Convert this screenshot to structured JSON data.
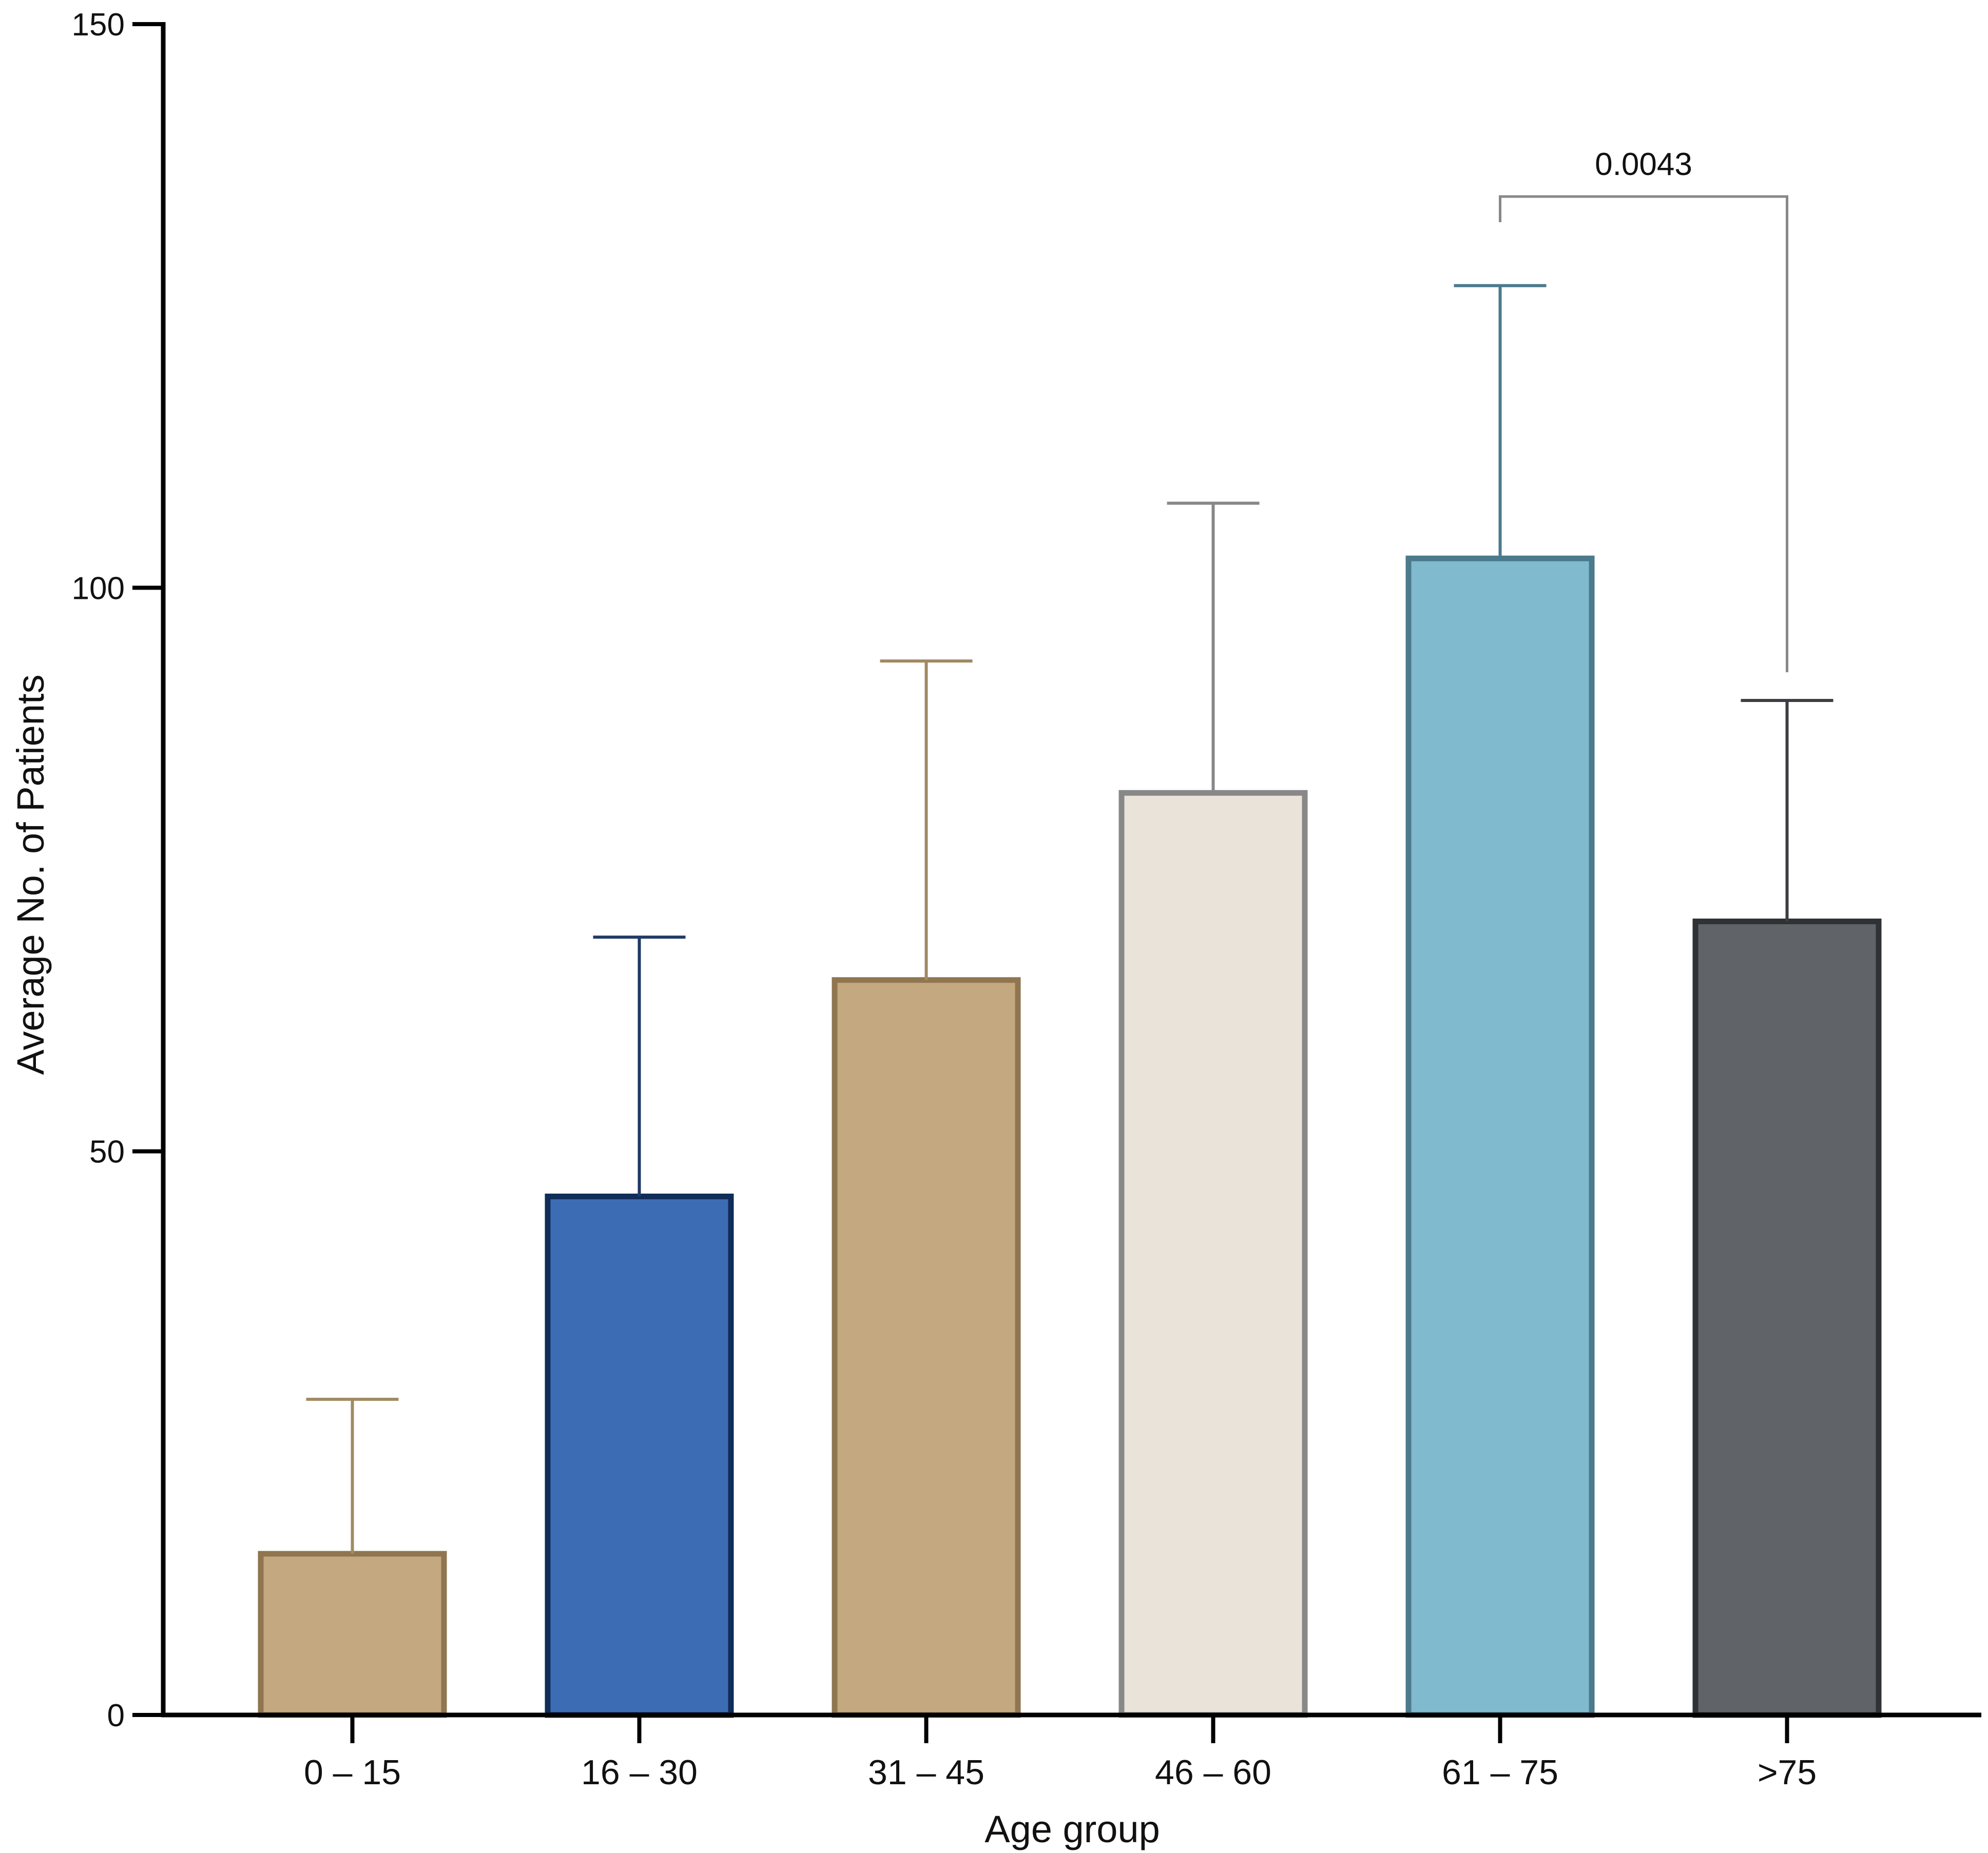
{
  "chart_data": {
    "type": "bar",
    "title": "",
    "xlabel": "Age group",
    "ylabel": "Average No. of Patients",
    "ylim": [
      0,
      150
    ],
    "yticks": [
      0,
      50,
      100,
      150
    ],
    "grid": false,
    "categories": [
      "0 – 15",
      "16 – 30",
      "31 – 45",
      "46 – 60",
      "61 – 75",
      ">75"
    ],
    "values": [
      14.3,
      46.0,
      65.2,
      81.8,
      102.6,
      70.4
    ],
    "error_upper": [
      28.0,
      69.0,
      93.5,
      107.5,
      126.8,
      90.0
    ],
    "bar_fill_colors": [
      "#c4a880",
      "#3c6db4",
      "#c4a880",
      "#e9e3da",
      "#80bace",
      "#606368"
    ],
    "bar_stroke_colors": [
      "#8f7650",
      "#102c58",
      "#8f7650",
      "#888888",
      "#4b7a8c",
      "#2f3235"
    ],
    "error_colors": [
      "#a08a62",
      "#1e3a66",
      "#a08a62",
      "#888888",
      "#4b7a8c",
      "#3c3e42"
    ],
    "significance": [
      {
        "from": "61 – 75",
        "to": ">75",
        "label": "0.0043"
      }
    ]
  }
}
